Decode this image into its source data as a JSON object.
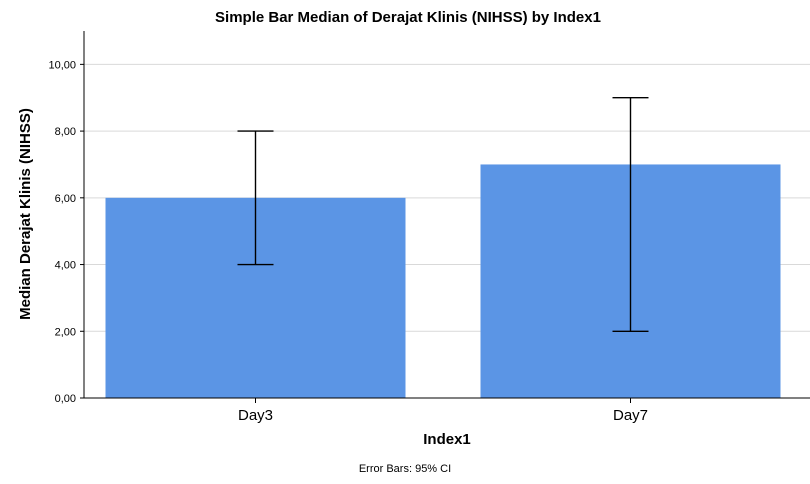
{
  "chart_data": {
    "type": "bar",
    "title": "Simple Bar Median of Derajat Klinis (NIHSS) by Index1",
    "xlabel": "Index1",
    "ylabel": "Median Derajat Klinis (NIHSS)",
    "categories": [
      "Day3",
      "Day7"
    ],
    "values": [
      6,
      7
    ],
    "error_bars": {
      "label": "Error Bars: 95% CI",
      "lower": [
        4,
        2
      ],
      "upper": [
        8,
        9
      ]
    },
    "ylim": [
      0,
      11
    ],
    "yticks": [
      {
        "value": 0,
        "label": "0,00"
      },
      {
        "value": 2,
        "label": "2,00"
      },
      {
        "value": 4,
        "label": "4,00"
      },
      {
        "value": 6,
        "label": "6,00"
      },
      {
        "value": 8,
        "label": "8,00"
      },
      {
        "value": 10,
        "label": "10,00"
      }
    ],
    "grid": "horizontal",
    "colors": {
      "bar": "#5b95e5",
      "error_bar": "#000000",
      "grid": "#d9d9d9",
      "axis": "#000000"
    }
  }
}
